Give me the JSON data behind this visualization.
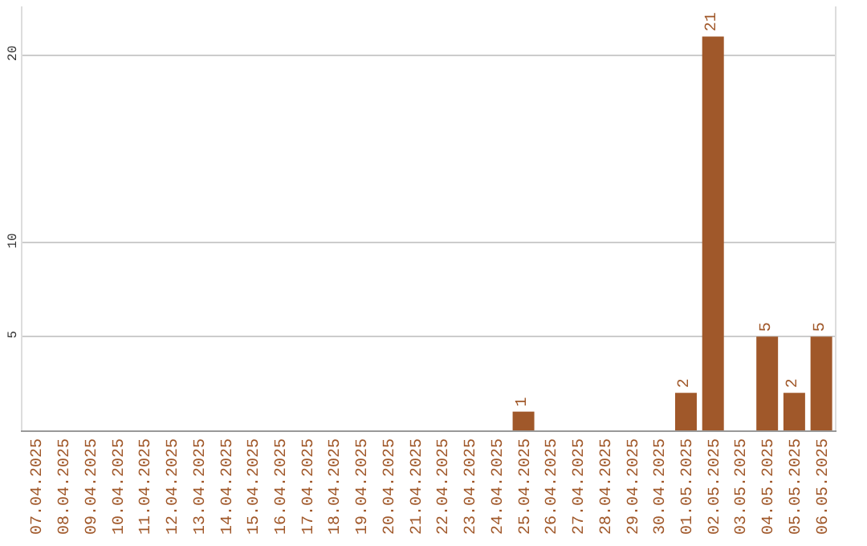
{
  "chart_data": {
    "type": "bar",
    "categories": [
      "07.04.2025",
      "08.04.2025",
      "09.04.2025",
      "10.04.2025",
      "11.04.2025",
      "12.04.2025",
      "13.04.2025",
      "14.04.2025",
      "15.04.2025",
      "16.04.2025",
      "17.04.2025",
      "18.04.2025",
      "19.04.2025",
      "20.04.2025",
      "21.04.2025",
      "22.04.2025",
      "23.04.2025",
      "24.04.2025",
      "25.04.2025",
      "26.04.2025",
      "27.04.2025",
      "28.04.2025",
      "29.04.2025",
      "30.04.2025",
      "01.05.2025",
      "02.05.2025",
      "03.05.2025",
      "04.05.2025",
      "05.05.2025",
      "06.05.2025"
    ],
    "values": [
      0,
      0,
      0,
      0,
      0,
      0,
      0,
      0,
      0,
      0,
      0,
      0,
      0,
      0,
      0,
      0,
      0,
      0,
      1,
      0,
      0,
      0,
      0,
      0,
      2,
      21,
      0,
      5,
      2,
      5
    ],
    "value_labels": [
      null,
      null,
      null,
      null,
      null,
      null,
      null,
      null,
      null,
      null,
      null,
      null,
      null,
      null,
      null,
      null,
      null,
      null,
      "1",
      null,
      null,
      null,
      null,
      null,
      "2",
      "21",
      null,
      "5",
      "2",
      "5"
    ],
    "color": "#a0582a",
    "ylim": [
      0,
      22.6
    ],
    "yticks": [
      5,
      10,
      20
    ],
    "grid": "y"
  }
}
